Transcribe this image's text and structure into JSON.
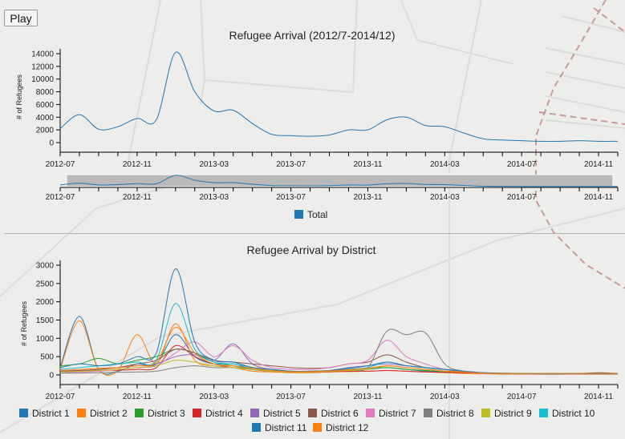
{
  "controls": {
    "play_label": "Play"
  },
  "chart_data": [
    {
      "id": "total",
      "type": "line",
      "title": "Refugee Arrival (2012/7-2014/12)",
      "ylabel": "# of Refugees",
      "ylim": [
        0,
        14000
      ],
      "yticks": [
        "0",
        "2000",
        "4000",
        "6000",
        "8000",
        "10000",
        "12000",
        "14000"
      ],
      "x": [
        "2012-07",
        "2012-08",
        "2012-09",
        "2012-10",
        "2012-11",
        "2012-12",
        "2013-01",
        "2013-02",
        "2013-03",
        "2013-04",
        "2013-05",
        "2013-06",
        "2013-07",
        "2013-08",
        "2013-09",
        "2013-10",
        "2013-11",
        "2013-12",
        "2014-01",
        "2014-02",
        "2014-03",
        "2014-04",
        "2014-05",
        "2014-06",
        "2014-07",
        "2014-08",
        "2014-09",
        "2014-10",
        "2014-11",
        "2014-12"
      ],
      "xticks": [
        "2012-07",
        "2012-11",
        "2013-03",
        "2013-07",
        "2013-11",
        "2014-03",
        "2014-07",
        "2014-11"
      ],
      "series": [
        {
          "name": "Total",
          "color": "#1f77b4",
          "values": [
            2200,
            4400,
            2100,
            2500,
            3800,
            3600,
            14200,
            8000,
            5000,
            5100,
            3000,
            1300,
            1100,
            1000,
            1200,
            2000,
            2000,
            3600,
            4000,
            2700,
            2500,
            1500,
            600,
            400,
            300,
            200,
            200,
            300,
            200,
            200
          ]
        }
      ],
      "brush_ticks": [
        "2012-07",
        "2012-11",
        "2013-03",
        "2013-07",
        "2013-11",
        "2014-03",
        "2014-07",
        "2014-11"
      ],
      "legend": [
        "Total"
      ]
    },
    {
      "id": "district",
      "type": "line",
      "title": "Refugee Arrival by District",
      "ylabel": "# of Refugees",
      "ylim": [
        0,
        3000
      ],
      "yticks": [
        "0",
        "500",
        "1000",
        "1500",
        "2000",
        "2500",
        "3000"
      ],
      "x": [
        "2012-07",
        "2012-08",
        "2012-09",
        "2012-10",
        "2012-11",
        "2012-12",
        "2013-01",
        "2013-02",
        "2013-03",
        "2013-04",
        "2013-05",
        "2013-06",
        "2013-07",
        "2013-08",
        "2013-09",
        "2013-10",
        "2013-11",
        "2013-12",
        "2014-01",
        "2014-02",
        "2014-03",
        "2014-04",
        "2014-05",
        "2014-06",
        "2014-07",
        "2014-08",
        "2014-09",
        "2014-10",
        "2014-11",
        "2014-12"
      ],
      "xticks": [
        "2012-07",
        "2012-11",
        "2013-03",
        "2013-07",
        "2013-11",
        "2014-03",
        "2014-07",
        "2014-11"
      ],
      "series": [
        {
          "name": "District 1",
          "color": "#1f77b4",
          "values": [
            200,
            1600,
            150,
            100,
            300,
            300,
            1100,
            500,
            300,
            300,
            150,
            100,
            80,
            80,
            100,
            120,
            150,
            200,
            150,
            100,
            80,
            60,
            40,
            30,
            30,
            20,
            20,
            30,
            30,
            30
          ]
        },
        {
          "name": "District 2",
          "color": "#ff7f0e",
          "values": [
            150,
            1480,
            150,
            120,
            1100,
            300,
            1400,
            400,
            250,
            200,
            100,
            80,
            60,
            60,
            80,
            90,
            100,
            120,
            100,
            80,
            60,
            40,
            30,
            20,
            20,
            20,
            20,
            20,
            20,
            20
          ]
        },
        {
          "name": "District 3",
          "color": "#2ca02c",
          "values": [
            250,
            300,
            450,
            300,
            400,
            500,
            700,
            600,
            350,
            250,
            150,
            120,
            100,
            100,
            120,
            150,
            180,
            200,
            150,
            120,
            100,
            80,
            60,
            50,
            40,
            40,
            40,
            40,
            40,
            40
          ]
        },
        {
          "name": "District 4",
          "color": "#d62728",
          "values": [
            100,
            100,
            120,
            130,
            150,
            200,
            800,
            500,
            300,
            200,
            150,
            100,
            80,
            80,
            90,
            100,
            100,
            120,
            100,
            80,
            70,
            60,
            50,
            40,
            40,
            40,
            40,
            40,
            40,
            40
          ]
        },
        {
          "name": "District 5",
          "color": "#9467bd",
          "values": [
            100,
            120,
            150,
            200,
            250,
            300,
            500,
            550,
            400,
            850,
            300,
            150,
            100,
            100,
            120,
            200,
            250,
            300,
            250,
            200,
            150,
            100,
            50,
            40,
            40,
            40,
            40,
            40,
            40,
            40
          ]
        },
        {
          "name": "District 6",
          "color": "#8c564b",
          "values": [
            100,
            120,
            150,
            200,
            300,
            400,
            700,
            600,
            400,
            350,
            300,
            250,
            200,
            180,
            200,
            300,
            350,
            550,
            350,
            200,
            150,
            100,
            60,
            40,
            40,
            40,
            40,
            40,
            60,
            40
          ]
        },
        {
          "name": "District 7",
          "color": "#e377c2",
          "values": [
            50,
            80,
            100,
            150,
            200,
            250,
            600,
            900,
            500,
            800,
            400,
            200,
            150,
            150,
            200,
            300,
            400,
            950,
            500,
            300,
            150,
            80,
            40,
            30,
            30,
            30,
            30,
            30,
            30,
            30
          ]
        },
        {
          "name": "District 8",
          "color": "#7f7f7f",
          "values": [
            50,
            50,
            60,
            70,
            80,
            100,
            200,
            250,
            200,
            200,
            150,
            100,
            80,
            80,
            100,
            150,
            200,
            1200,
            1100,
            1150,
            300,
            100,
            50,
            30,
            30,
            30,
            30,
            30,
            30,
            30
          ]
        },
        {
          "name": "District 9",
          "color": "#bcbd22",
          "values": [
            80,
            100,
            120,
            150,
            200,
            250,
            400,
            350,
            250,
            200,
            150,
            100,
            80,
            80,
            100,
            120,
            150,
            250,
            200,
            150,
            100,
            80,
            50,
            40,
            40,
            40,
            40,
            40,
            40,
            40
          ]
        },
        {
          "name": "District 10",
          "color": "#17becf",
          "values": [
            150,
            200,
            250,
            300,
            350,
            400,
            1950,
            700,
            350,
            300,
            200,
            150,
            100,
            100,
            120,
            150,
            200,
            350,
            250,
            200,
            150,
            100,
            60,
            40,
            40,
            40,
            40,
            40,
            40,
            40
          ]
        },
        {
          "name": "District 11",
          "color": "#1f77b4",
          "values": [
            200,
            300,
            250,
            300,
            500,
            600,
            2900,
            900,
            400,
            350,
            200,
            150,
            100,
            100,
            120,
            180,
            250,
            350,
            250,
            200,
            150,
            100,
            60,
            40,
            30,
            30,
            30,
            30,
            30,
            30
          ]
        },
        {
          "name": "District 12",
          "color": "#ff7f0e",
          "values": [
            120,
            150,
            180,
            200,
            250,
            350,
            1300,
            600,
            300,
            250,
            180,
            120,
            90,
            90,
            110,
            140,
            180,
            250,
            200,
            150,
            110,
            80,
            50,
            40,
            40,
            40,
            40,
            40,
            40,
            40
          ]
        }
      ]
    }
  ]
}
